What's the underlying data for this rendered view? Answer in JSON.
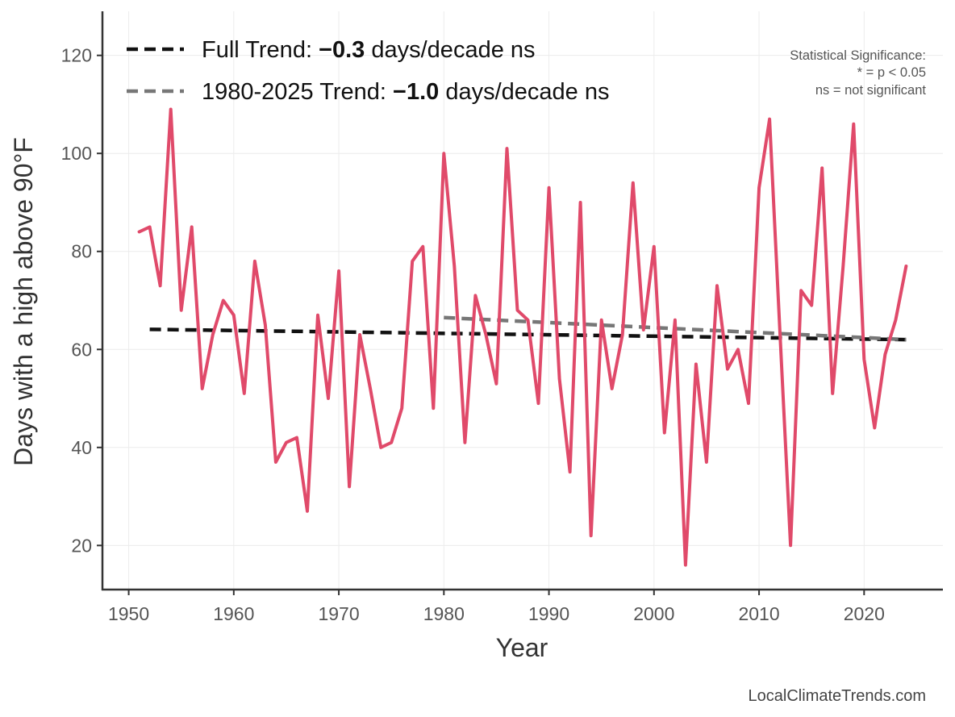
{
  "chart_data": {
    "type": "line",
    "xlabel": "Year",
    "ylabel": "Days with a high above 90°F",
    "xlim": [
      1947.5,
      2027.5
    ],
    "ylim": [
      11,
      129
    ],
    "xticks": [
      1950,
      1960,
      1970,
      1980,
      1990,
      2000,
      2010,
      2020
    ],
    "yticks": [
      20,
      40,
      60,
      80,
      100,
      120
    ],
    "grid": true,
    "series": [
      {
        "name": "Days above 90°F",
        "color": "#e04a6a",
        "x": [
          1951,
          1952,
          1953,
          1954,
          1955,
          1956,
          1957,
          1958,
          1959,
          1960,
          1961,
          1962,
          1963,
          1964,
          1965,
          1966,
          1967,
          1968,
          1969,
          1970,
          1971,
          1972,
          1973,
          1974,
          1975,
          1976,
          1977,
          1978,
          1979,
          1980,
          1981,
          1982,
          1983,
          1984,
          1985,
          1986,
          1987,
          1988,
          1989,
          1990,
          1991,
          1992,
          1993,
          1994,
          1995,
          1996,
          1997,
          1998,
          1999,
          2000,
          2001,
          2002,
          2003,
          2004,
          2005,
          2006,
          2007,
          2008,
          2009,
          2010,
          2011,
          2012,
          2013,
          2014,
          2015,
          2016,
          2017,
          2018,
          2019,
          2020,
          2021,
          2022,
          2023,
          2024
        ],
        "values": [
          84,
          85,
          73,
          109,
          68,
          85,
          52,
          63,
          70,
          67,
          51,
          78,
          65,
          37,
          41,
          42,
          27,
          67,
          50,
          76,
          32,
          63,
          52,
          40,
          41,
          48,
          78,
          81,
          48,
          100,
          77,
          41,
          71,
          63,
          53,
          101,
          68,
          66,
          49,
          93,
          54,
          35,
          90,
          22,
          66,
          52,
          63,
          94,
          64,
          81,
          43,
          66,
          16,
          57,
          37,
          73,
          56,
          60,
          49,
          93,
          107,
          63,
          20,
          72,
          69,
          97,
          51,
          77,
          106,
          58,
          44,
          59,
          66,
          77
        ]
      }
    ],
    "trend_lines": [
      {
        "name": "Full Trend",
        "color": "#111111",
        "x": [
          1952,
          2024
        ],
        "values": [
          64.1,
          62.0
        ]
      },
      {
        "name": "1980-2025 Trend",
        "color": "#777777",
        "x": [
          1980,
          2024
        ],
        "values": [
          66.5,
          62.0
        ]
      }
    ],
    "legend": [
      {
        "prefix": "Full Trend: ",
        "value": "−0.3",
        "suffix": " days/decade ns",
        "color": "#111111"
      },
      {
        "prefix": "1980-2025 Trend: ",
        "value": "−1.0",
        "suffix": " days/decade ns",
        "color": "#777777"
      }
    ],
    "significance_note": [
      "Statistical Significance:",
      "* = p < 0.05",
      "ns = not significant"
    ],
    "credit": "LocalClimateTrends.com"
  }
}
